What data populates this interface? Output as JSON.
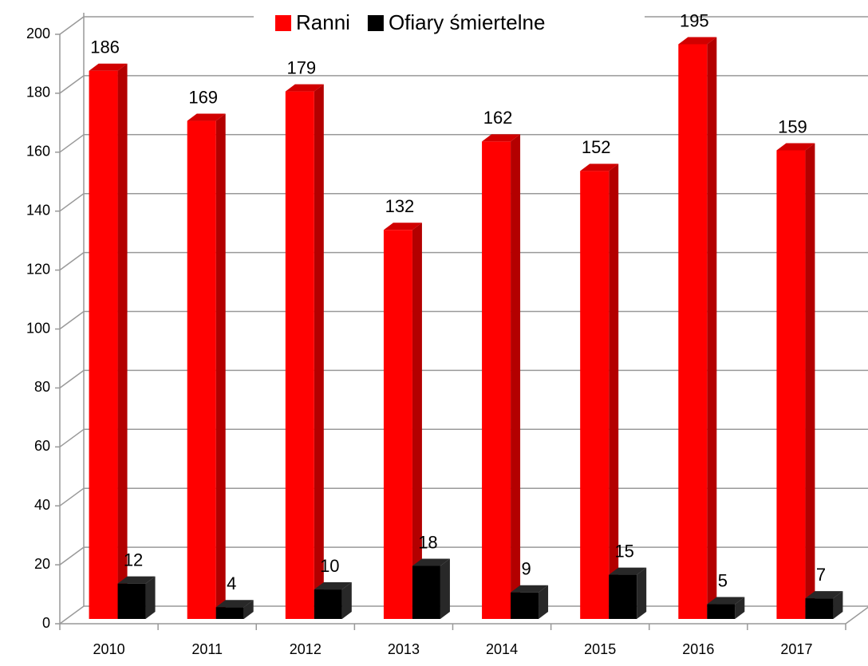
{
  "chart_data": {
    "type": "bar3d",
    "categories": [
      "2010",
      "2011",
      "2012",
      "2013",
      "2014",
      "2015",
      "2016",
      "2017"
    ],
    "series": [
      {
        "name": "Ranni",
        "color": "#ff0000",
        "values": [
          186,
          169,
          179,
          132,
          162,
          152,
          195,
          159
        ]
      },
      {
        "name": "Ofiary śmiertelne",
        "color": "#000000",
        "values": [
          12,
          4,
          10,
          18,
          9,
          15,
          5,
          7
        ]
      }
    ],
    "ylim": [
      0,
      200
    ],
    "yticks": [
      0,
      20,
      40,
      60,
      80,
      100,
      120,
      140,
      160,
      180,
      200
    ],
    "grid": true,
    "legend": "top"
  }
}
